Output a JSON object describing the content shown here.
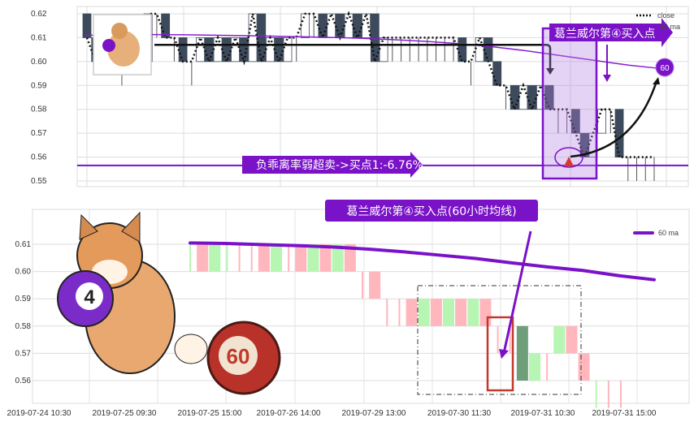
{
  "chart_data": [
    {
      "type": "candlestick",
      "panel": "top",
      "ylim": [
        0.55,
        0.62
      ],
      "yticks": [
        "0.62",
        "0.61",
        "0.60",
        "0.59",
        "0.58",
        "0.57",
        "0.56",
        "0.55"
      ],
      "grid": true,
      "legend": {
        "position": "top-right",
        "entries": [
          "close",
          "60 ma"
        ]
      },
      "first_open": 0.62,
      "closes": [
        0.61,
        0.6,
        0.61,
        0.6,
        0.6,
        0.61,
        0.6,
        0.62,
        0.62,
        0.61,
        0.61,
        0.6,
        0.6,
        0.61,
        0.6,
        0.61,
        0.6,
        0.61,
        0.6,
        0.62,
        0.6,
        0.61,
        0.6,
        0.61,
        0.61,
        0.62,
        0.62,
        0.61,
        0.62,
        0.61,
        0.62,
        0.61,
        0.62,
        0.6,
        0.61,
        0.61,
        0.61,
        0.61,
        0.61,
        0.61,
        0.61,
        0.61,
        0.61,
        0.6,
        0.6,
        0.61,
        0.6,
        0.59,
        0.59,
        0.58,
        0.59,
        0.58,
        0.59,
        0.58,
        0.58,
        0.58,
        0.57,
        0.56,
        0.57,
        0.58,
        0.58,
        0.56,
        0.56,
        0.56,
        0.56,
        0.56
      ],
      "ma60": [
        0.611,
        0.6112,
        0.6113,
        0.6112,
        0.611,
        0.6108,
        0.6105,
        0.6102,
        0.6098,
        0.6092,
        0.6085,
        0.6075,
        0.6062,
        0.6045,
        0.6025,
        0.6005,
        0.5985,
        0.597
      ],
      "annotations": {
        "buy_signal": "葛兰威尔第④买入点",
        "deviation": "负乖离率弱超卖->买点1:-6.76%",
        "ma_badge": "60",
        "support_level": 0.5565,
        "ref_level": 0.607
      },
      "colors": {
        "down": "#3d4a5c",
        "up": "#ffffff",
        "ma": "#8a1fd0",
        "accent": "#7a12c8",
        "marker": "#d9372a"
      }
    },
    {
      "type": "candlestick",
      "panel": "bottom",
      "ylim": [
        0.555,
        0.617
      ],
      "yticks": [
        "0.61",
        "0.60",
        "0.59",
        "0.58",
        "0.57",
        "0.56"
      ],
      "xticks": [
        "2019-07-24 10:30",
        "2019-07-25 09:30",
        "2019-07-25 15:00",
        "2019-07-26 14:00",
        "2019-07-29 13:00",
        "2019-07-30 11:30",
        "2019-07-31 10:30",
        "2019-07-31 15:00"
      ],
      "grid": true,
      "legend": {
        "position": "top-right",
        "entries": [
          "60 ma"
        ]
      },
      "first_open": 0.61,
      "closes": [
        0.61,
        0.6,
        0.61,
        0.61,
        0.61,
        0.61,
        0.6,
        0.61,
        0.61,
        0.6,
        0.61,
        0.6,
        0.61,
        0.6,
        0.6,
        0.59,
        0.59,
        0.59,
        0.58,
        0.59,
        0.58,
        0.59,
        0.58,
        0.59,
        0.58,
        0.58,
        0.58,
        0.56,
        0.57,
        0.57,
        0.58,
        0.57,
        0.56,
        0.56,
        0.56,
        0.56
      ],
      "ma60": [
        0.6105,
        0.6103,
        0.6099,
        0.6095,
        0.609,
        0.6082,
        0.6072,
        0.606,
        0.6048,
        0.6032,
        0.6017,
        0.6004,
        0.5985,
        0.597
      ],
      "annotations": {
        "title_box": "葛兰威尔第④买入点(60小时均线)",
        "ball_number": "60",
        "dog_ball_number": "4"
      },
      "colors": {
        "up": "#b7f5b2",
        "down": "#ffb6bd",
        "highlight": "#6e9e7a",
        "ma": "#7a12c8",
        "box": "#c0392b"
      }
    }
  ]
}
